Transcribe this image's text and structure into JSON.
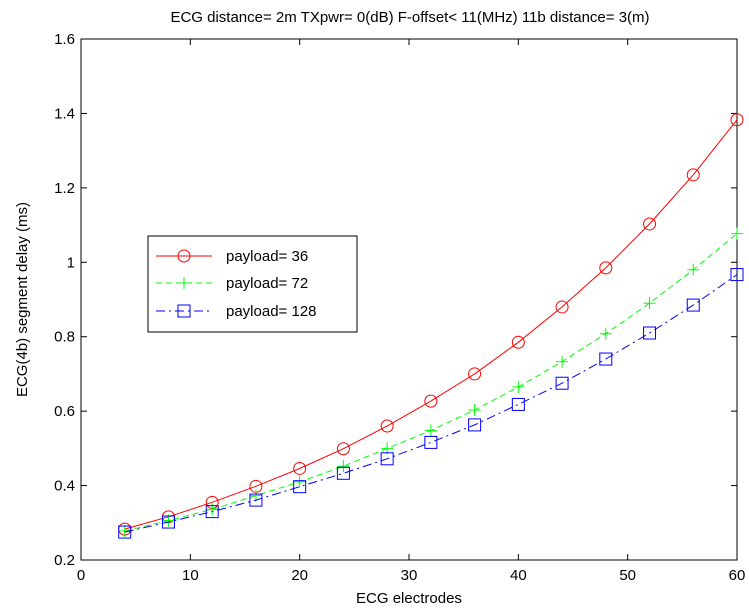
{
  "chart_data": {
    "type": "line",
    "title": "ECG distance= 2m   TXpwr= 0(dB)  F-offset< 11(MHz)  11b distance= 3(m)",
    "xlabel": "ECG electrodes",
    "ylabel": "ECG(4b) segment delay (ms)",
    "xlim": [
      0,
      60
    ],
    "ylim": [
      0.2,
      1.6
    ],
    "xticks": [
      "0",
      "10",
      "20",
      "30",
      "40",
      "50",
      "60"
    ],
    "yticks": [
      "0.2",
      "0.4",
      "0.6",
      "0.8",
      "1",
      "1.2",
      "1.4",
      "1.6"
    ],
    "grid": false,
    "legend_position": "middle-left",
    "x": [
      4,
      8,
      12,
      16,
      20,
      24,
      28,
      32,
      36,
      40,
      44,
      48,
      52,
      56,
      60
    ],
    "series": [
      {
        "name": "payload= 36",
        "color": "#ff0000",
        "line_style": "solid",
        "marker": "circle",
        "values": [
          0.283,
          0.316,
          0.355,
          0.398,
          0.446,
          0.499,
          0.56,
          0.627,
          0.7,
          0.785,
          0.88,
          0.985,
          1.103,
          1.235,
          1.383
        ]
      },
      {
        "name": "payload= 72",
        "color": "#00ff00",
        "line_style": "dashed",
        "marker": "plus",
        "values": [
          0.278,
          0.306,
          0.336,
          0.373,
          0.41,
          0.452,
          0.5,
          0.548,
          0.603,
          0.665,
          0.733,
          0.808,
          0.89,
          0.98,
          1.077
        ]
      },
      {
        "name": "payload= 128",
        "color": "#0000ff",
        "line_style": "dashdot",
        "marker": "square",
        "values": [
          0.275,
          0.302,
          0.33,
          0.361,
          0.397,
          0.433,
          0.472,
          0.516,
          0.563,
          0.618,
          0.675,
          0.74,
          0.81,
          0.885,
          0.967
        ]
      }
    ]
  }
}
